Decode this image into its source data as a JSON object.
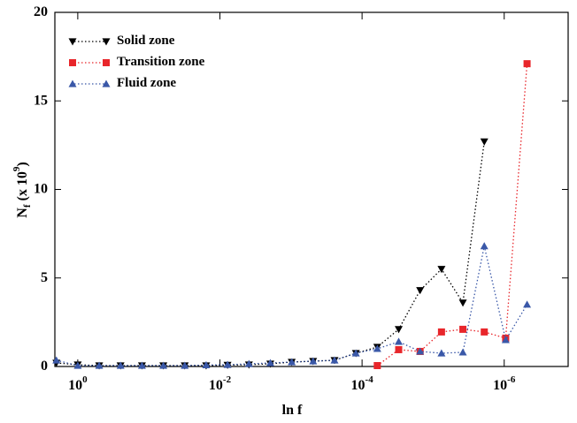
{
  "chart_data": {
    "type": "line",
    "x_label": "ln f",
    "y_label": "N_{f} (x 10^{9})",
    "x": [
      2,
      1,
      0.5,
      0.25,
      0.125,
      0.0625,
      0.03125,
      0.015625,
      0.0078125,
      0.00390625,
      0.001953125,
      0.0009765625,
      0.00048828125,
      0.000244140625,
      0.0001220703125,
      6.103515625e-05,
      3.0517578125e-05,
      1.52587890625e-05,
      7.62939453125e-06,
      3.814697265625e-06,
      1.9073486328125e-06,
      9.5367431640625e-07,
      4.76837158203125e-07
    ],
    "series": [
      {
        "name": "Solid zone",
        "color": "#000000",
        "marker": "triangle-down",
        "values": [
          0.2,
          0.1,
          0.05,
          0.05,
          0.05,
          0.05,
          0.05,
          0.05,
          0.08,
          0.1,
          0.15,
          0.25,
          0.3,
          0.35,
          0.75,
          1.1,
          2.1,
          4.3,
          5.5,
          3.6,
          12.7,
          null,
          null
        ]
      },
      {
        "name": "Transition zone",
        "color": "#e8262b",
        "marker": "square",
        "values": [
          null,
          null,
          null,
          null,
          null,
          null,
          null,
          null,
          null,
          null,
          null,
          null,
          null,
          null,
          null,
          0.05,
          0.95,
          0.85,
          1.95,
          2.1,
          1.95,
          1.6,
          17.1
        ]
      },
      {
        "name": "Fluid zone",
        "color": "#3a58a8",
        "marker": "triangle-up",
        "values": [
          0.35,
          0.05,
          0.05,
          0.05,
          0.05,
          0.05,
          0.05,
          0.08,
          0.1,
          0.15,
          0.2,
          0.25,
          0.3,
          0.35,
          0.75,
          1.0,
          1.4,
          0.85,
          0.75,
          0.8,
          6.8,
          1.5,
          3.5
        ]
      }
    ],
    "xscale": "log",
    "xlim": [
      2.1,
      1.26e-07
    ],
    "xticks": [
      {
        "value": 1,
        "label": "10^{0}"
      },
      {
        "value": 0.01,
        "label": "10^{-2}"
      },
      {
        "value": 0.0001,
        "label": "10^{-4}"
      },
      {
        "value": 1e-06,
        "label": "10^{-6}"
      }
    ],
    "ylim": [
      0,
      20
    ],
    "yticks": [
      0,
      5,
      10,
      15,
      20
    ],
    "grid": false,
    "legend": "upper left"
  }
}
